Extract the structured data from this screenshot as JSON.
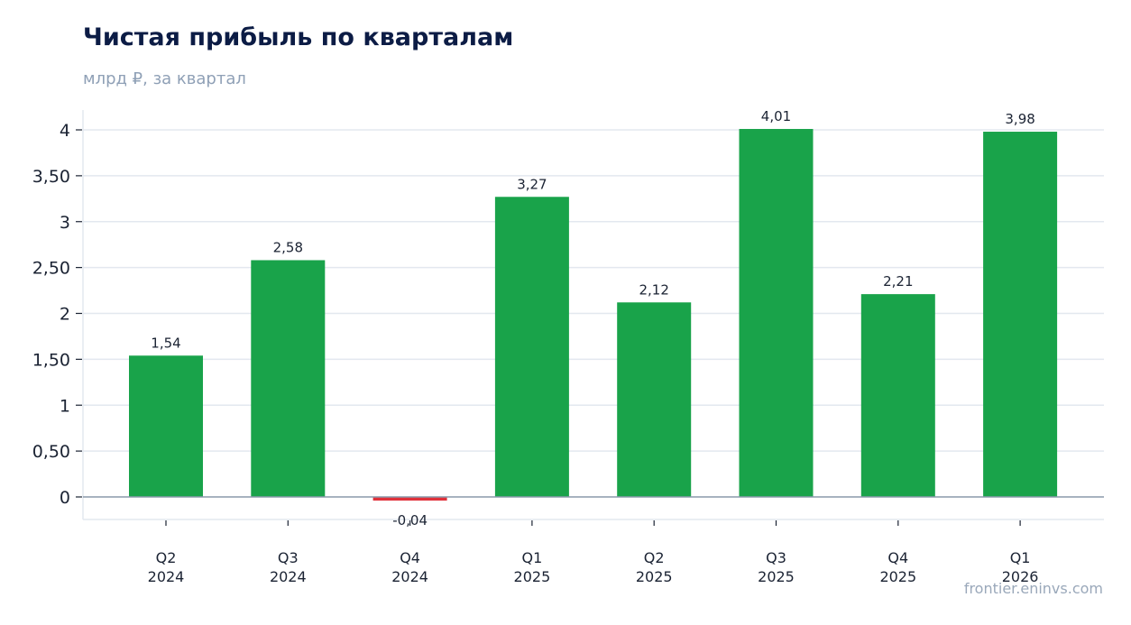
{
  "chart_data": {
    "type": "bar",
    "title": "Чистая прибыль по кварталам",
    "subtitle": "млрд ₽, за квартал",
    "source": "frontier.eninvs.com",
    "categories": [
      [
        "Q2",
        "2024"
      ],
      [
        "Q3",
        "2024"
      ],
      [
        "Q4",
        "2024"
      ],
      [
        "Q1",
        "2025"
      ],
      [
        "Q2",
        "2025"
      ],
      [
        "Q3",
        "2025"
      ],
      [
        "Q4",
        "2025"
      ],
      [
        "Q1",
        "2026"
      ]
    ],
    "values": [
      1.54,
      2.58,
      -0.04,
      3.27,
      2.12,
      4.01,
      2.21,
      3.98
    ],
    "value_labels": [
      "1,54",
      "2,58",
      "-0,04",
      "3,27",
      "2,12",
      "4,01",
      "2,21",
      "3,98"
    ],
    "yticks": [
      0,
      0.5,
      1,
      1.5,
      2,
      2.5,
      3,
      3.5,
      4
    ],
    "ytick_labels": [
      "0",
      "0,50",
      "1",
      "1,50",
      "2",
      "2,50",
      "3",
      "3,50",
      "4"
    ],
    "ylim": [
      -0.25,
      4.2
    ],
    "grid": true,
    "colors": {
      "positive": "#19a34a",
      "negative": "#e0313a",
      "grid": "#e3e8ef",
      "zero_line": "#8a9aab",
      "title": "#0c1c45",
      "muted": "#8fa0b6"
    }
  }
}
